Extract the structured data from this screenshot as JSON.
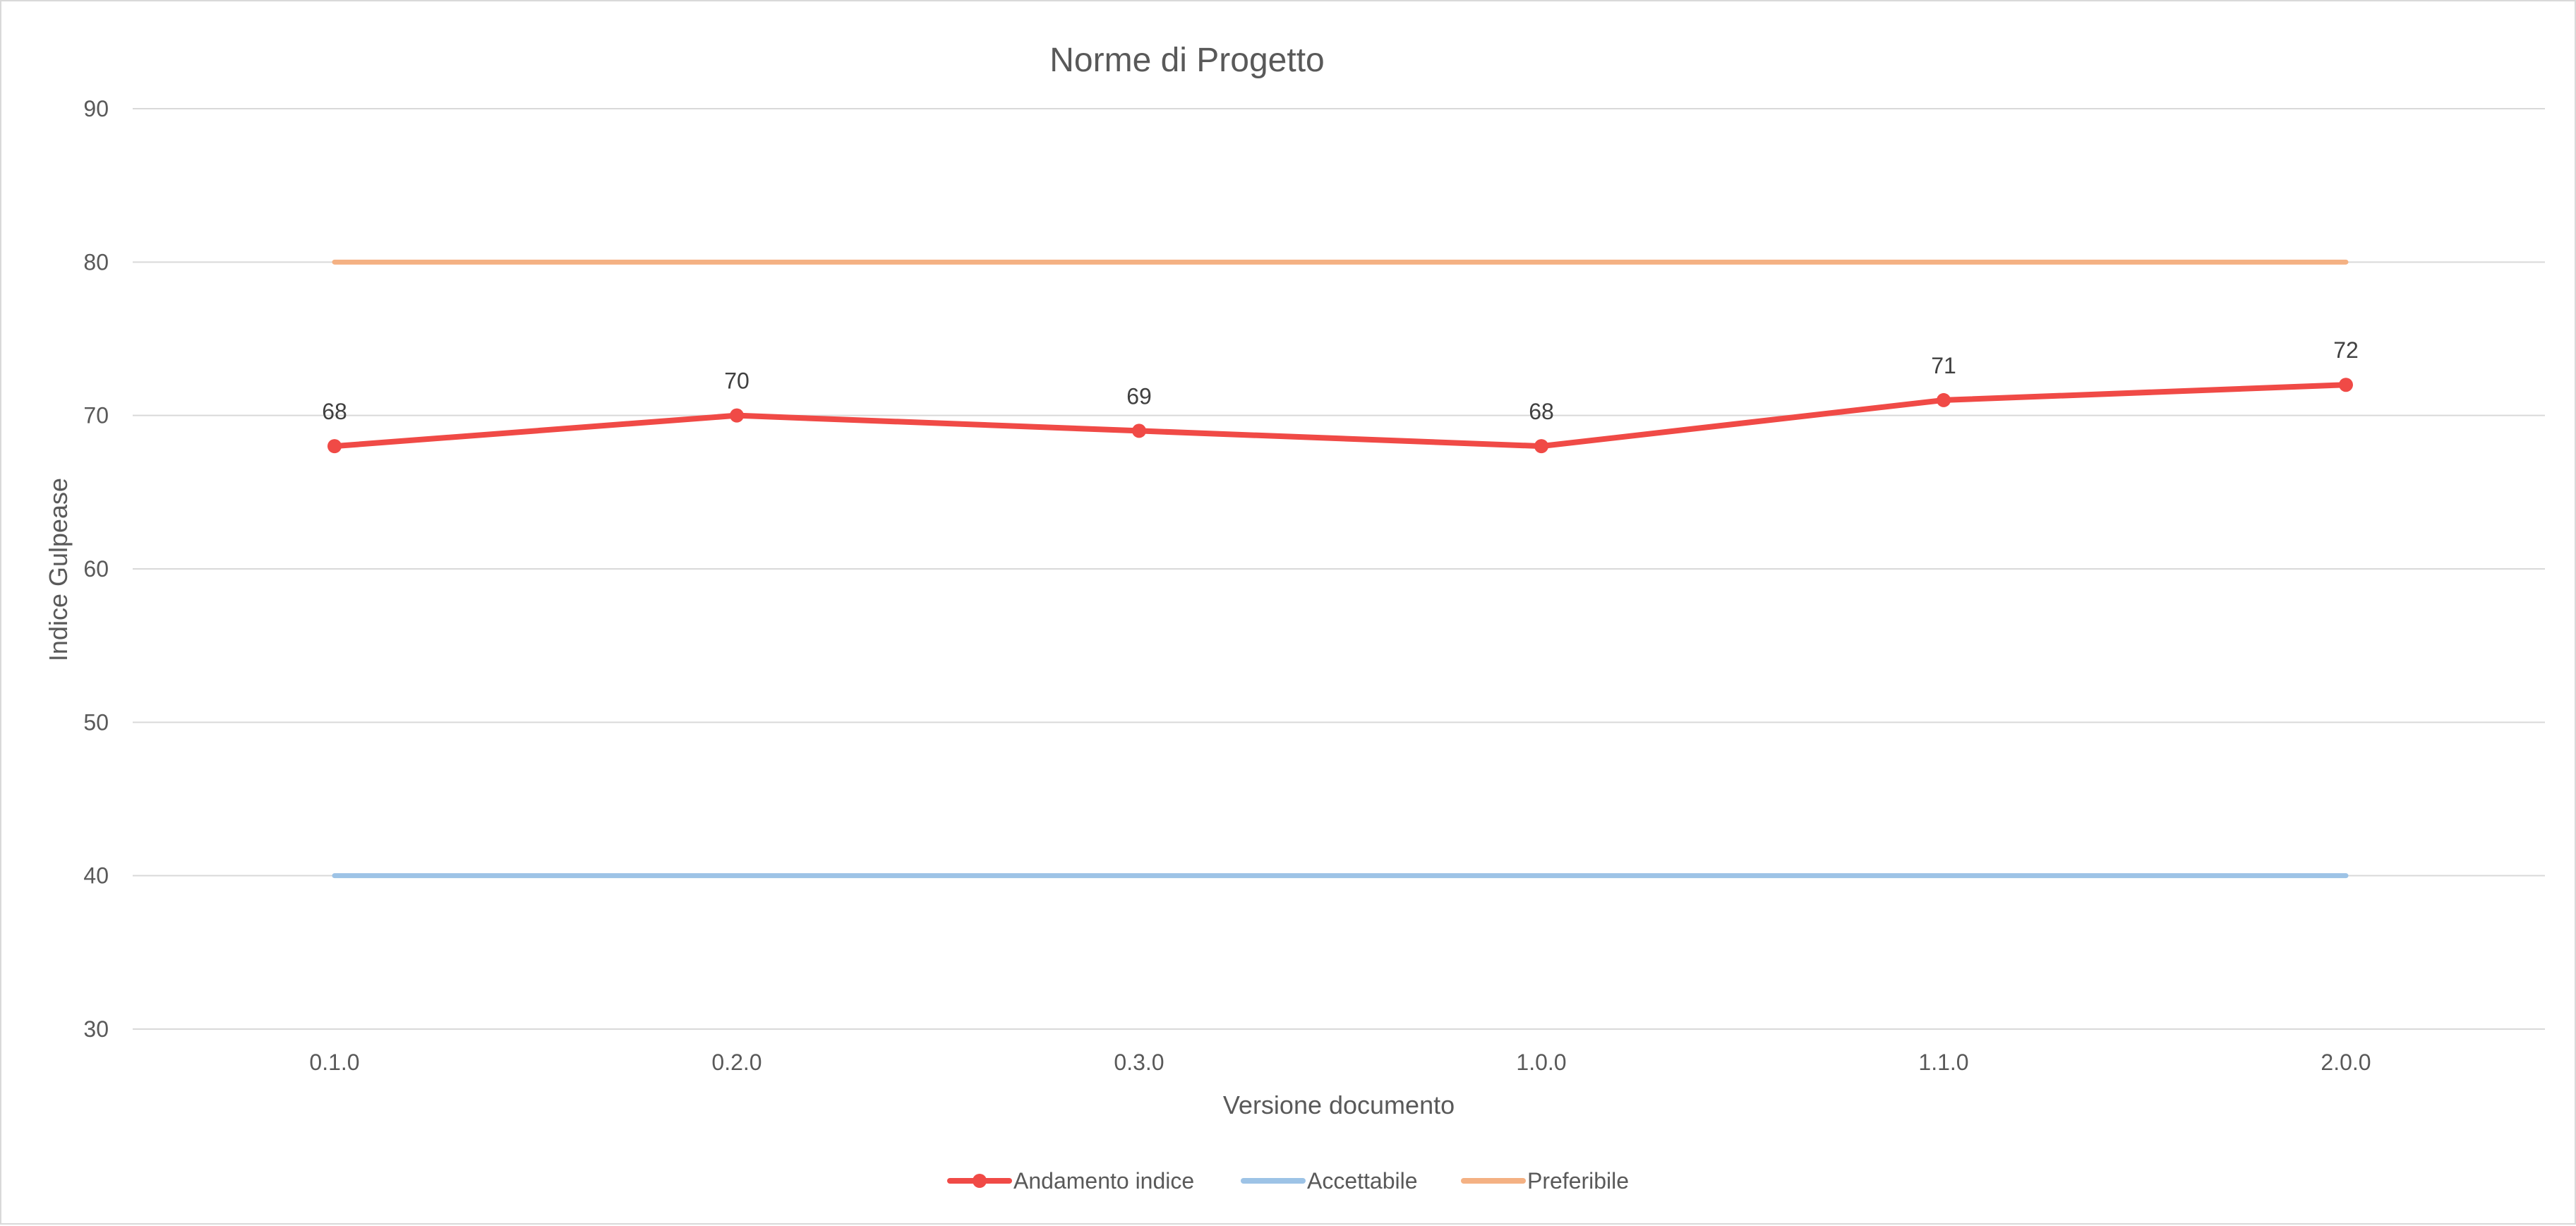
{
  "chart_data": {
    "type": "line",
    "title": "Norme di Progetto",
    "xlabel": "Versione documento",
    "ylabel": "Indice Gulpease",
    "categories": [
      "0.1.0",
      "0.2.0",
      "0.3.0",
      "1.0.0",
      "1.1.0",
      "2.0.0"
    ],
    "ylim": [
      30,
      90
    ],
    "yticks": [
      30,
      40,
      50,
      60,
      70,
      80,
      90
    ],
    "grid": true,
    "legend_position": "bottom",
    "series": [
      {
        "name": "Andamento indice",
        "values": [
          68,
          70,
          69,
          68,
          71,
          72
        ],
        "color": "#f04a46",
        "markers": true,
        "data_labels": true
      },
      {
        "name": "Accettabile",
        "values": [
          40,
          40,
          40,
          40,
          40,
          40
        ],
        "color": "#9dc3e6",
        "markers": false,
        "data_labels": false
      },
      {
        "name": "Preferibile",
        "values": [
          80,
          80,
          80,
          80,
          80,
          80
        ],
        "color": "#f4b183",
        "markers": false,
        "data_labels": false
      }
    ]
  }
}
